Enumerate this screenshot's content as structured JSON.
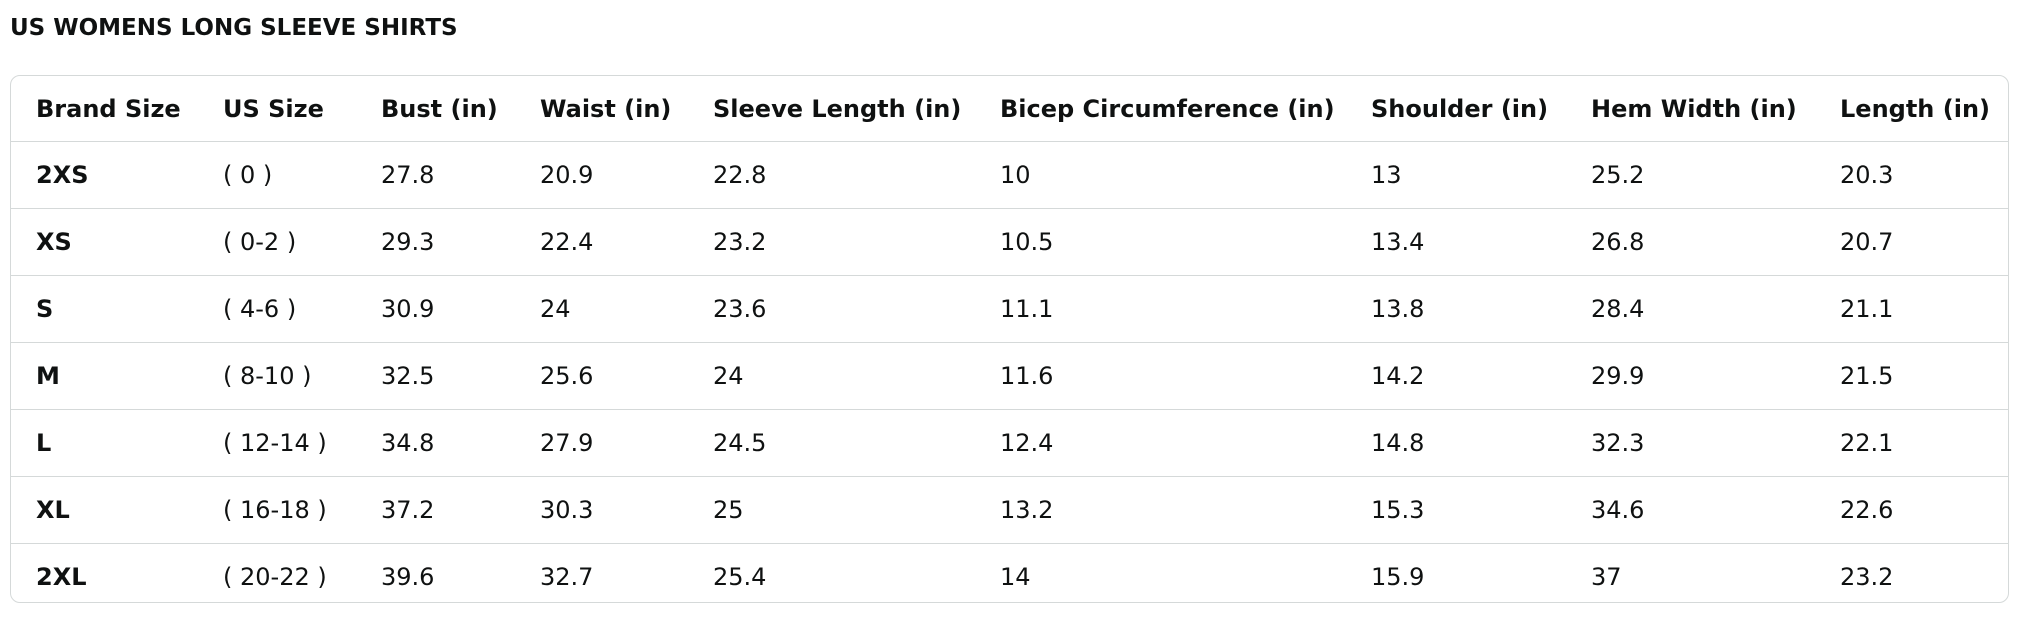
{
  "title": "US WOMENS LONG SLEEVE SHIRTS",
  "table": {
    "header": [
      "Brand Size",
      "US Size",
      "Bust (in)",
      "Waist (in)",
      "Sleeve Length (in)",
      "Bicep Circumference (in)",
      "Shoulder (in)",
      "Hem Width (in)",
      "Length (in)"
    ],
    "rows": [
      [
        "2XS",
        "( 0 )",
        27.8,
        20.9,
        22.8,
        10,
        13,
        25.2,
        20.3
      ],
      [
        "XS",
        "( 0-2 )",
        29.3,
        22.4,
        23.2,
        10.5,
        13.4,
        26.8,
        20.7
      ],
      [
        "S",
        "( 4-6 )",
        30.9,
        24,
        23.6,
        11.1,
        13.8,
        28.4,
        21.1
      ],
      [
        "M",
        "( 8-10 )",
        32.5,
        25.6,
        24,
        11.6,
        14.2,
        29.9,
        21.5
      ],
      [
        "L",
        "( 12-14 )",
        34.8,
        27.9,
        24.5,
        12.4,
        14.8,
        32.3,
        22.1
      ],
      [
        "XL",
        "( 16-18 )",
        37.2,
        30.3,
        25,
        13.2,
        15.3,
        34.6,
        22.6
      ],
      [
        "2XL",
        "( 20-22 )",
        39.6,
        32.7,
        25.4,
        14,
        15.9,
        37,
        23.2
      ]
    ]
  }
}
